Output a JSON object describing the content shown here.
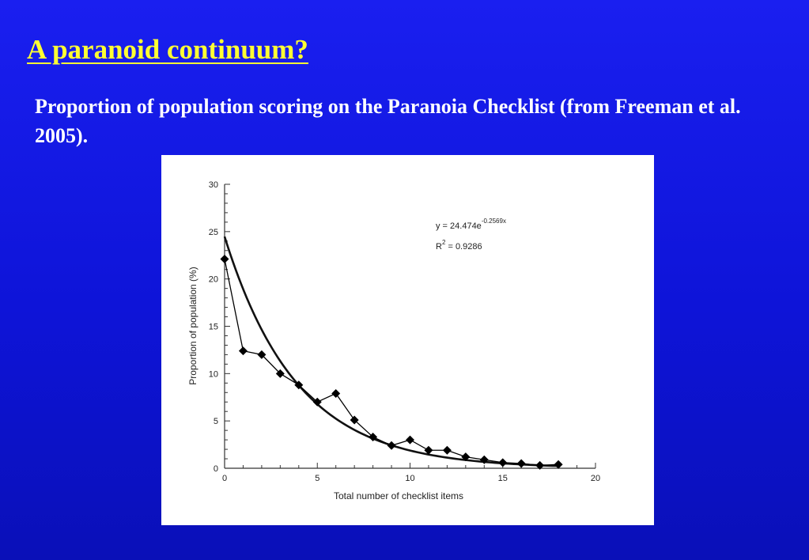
{
  "slide": {
    "title": "A paranoid continuum?",
    "subtitle": "Proportion of population scoring on the Paranoia Checklist (from Freeman et al. 2005)."
  },
  "chart_data": {
    "type": "scatter",
    "xlabel": "Total number of checklist items",
    "ylabel": "Proportion of population (%)",
    "xlim": [
      0,
      20
    ],
    "ylim": [
      0,
      30
    ],
    "x_ticks": [
      0,
      5,
      10,
      15,
      20
    ],
    "y_ticks": [
      0,
      5,
      10,
      15,
      20,
      25,
      30
    ],
    "grid": false,
    "series": [
      {
        "x": [
          0,
          1,
          2,
          3,
          4,
          5,
          6,
          7,
          8,
          9,
          10,
          11,
          12,
          13,
          14,
          15,
          16,
          17,
          18
        ],
        "y": [
          22.1,
          12.4,
          12.0,
          10.0,
          8.8,
          7.0,
          7.9,
          5.1,
          3.3,
          2.4,
          3.0,
          1.9,
          1.9,
          1.2,
          0.9,
          0.6,
          0.5,
          0.3,
          0.4
        ],
        "marker": "diamond",
        "connected": true
      }
    ],
    "fit": {
      "equation_prefix": "y = 24.474e",
      "equation_exponent": "-0.2569x",
      "r2_prefix": "R",
      "r2_sup": "2",
      "r2_suffix": " = 0.9286",
      "a": 24.474,
      "b": -0.2569
    },
    "colors": {
      "markers": "#000000",
      "fit_line": "#111111",
      "data_line": "#000000"
    }
  }
}
